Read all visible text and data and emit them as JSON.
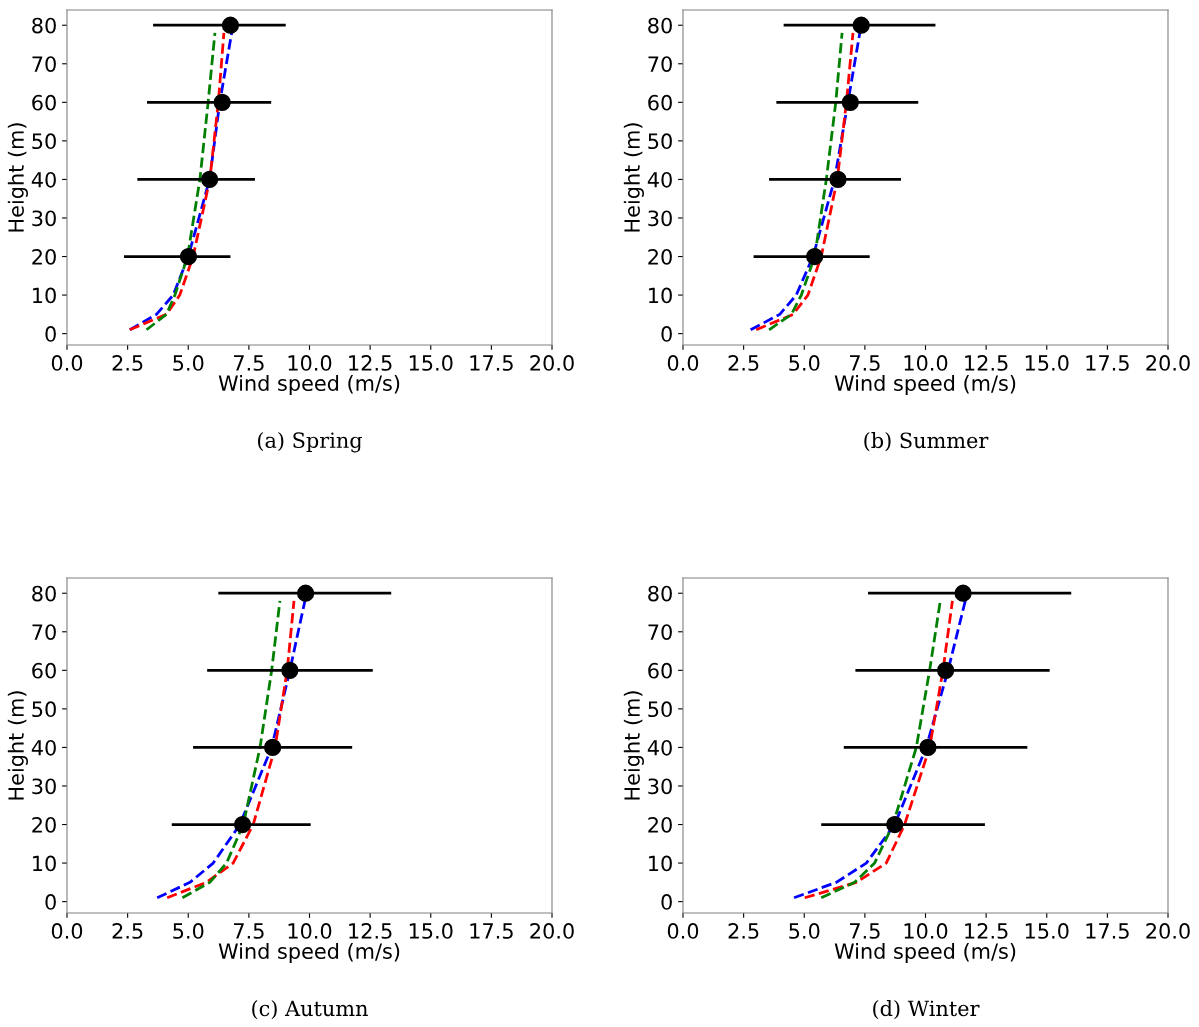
{
  "chart_data": [
    {
      "type": "line",
      "title": "(a) Spring",
      "xlabel": "Wind speed (m/s)",
      "ylabel": "Height (m)",
      "xlim": [
        0,
        20
      ],
      "ylim": [
        -2.95,
        83.95
      ],
      "xticks": [
        {
          "value": 0,
          "label": "0.0"
        },
        2.5,
        {
          "value": 5,
          "label": "5.0"
        },
        7.5,
        {
          "value": 10,
          "label": "10.0"
        },
        12.5,
        {
          "value": 15,
          "label": "15.0"
        },
        17.5,
        {
          "value": 20,
          "label": "20.0"
        }
      ],
      "yticks": [
        0,
        10,
        20,
        30,
        40,
        50,
        60,
        70,
        80
      ],
      "grid": false,
      "legend": false,
      "series": [
        {
          "color": "#0000ff",
          "line_style": "dashed",
          "x": [
            2.59,
            3.69,
            4.38,
            5.0,
            5.88,
            6.3,
            6.79
          ],
          "values": [
            1,
            5,
            10,
            20,
            40,
            60,
            78
          ]
        },
        {
          "color": "#ff0000",
          "line_style": "dashed",
          "x": [
            2.59,
            4.1,
            4.65,
            5.2,
            5.89,
            6.24,
            6.47
          ],
          "values": [
            1,
            5,
            10,
            20,
            40,
            60,
            78
          ]
        },
        {
          "color": "#008000",
          "line_style": "dashed",
          "x": [
            3.28,
            4.1,
            4.45,
            4.97,
            5.48,
            5.82,
            6.1
          ],
          "values": [
            1,
            5,
            10,
            20,
            40,
            60,
            78
          ]
        },
        {
          "type": "scatter",
          "color": "#000000",
          "marker": "circle",
          "x": [
            5.01,
            5.88,
            6.4,
            6.74
          ],
          "values": [
            20,
            40,
            60,
            80
          ],
          "xerrors": [
            [
              2.35,
              6.74
            ],
            [
              2.9,
              7.75
            ],
            [
              3.3,
              8.42
            ],
            [
              3.55,
              9.02
            ]
          ]
        }
      ]
    },
    {
      "type": "line",
      "title": "(b) Summer",
      "xlabel": "Wind speed (m/s)",
      "ylabel": "Height (m)",
      "xlim": [
        0,
        20
      ],
      "ylim": [
        -2.95,
        83.95
      ],
      "xticks": [
        {
          "value": 0,
          "label": "0.0"
        },
        2.5,
        {
          "value": 5,
          "label": "5.0"
        },
        7.5,
        {
          "value": 10,
          "label": "10.0"
        },
        12.5,
        {
          "value": 15,
          "label": "15.0"
        },
        17.5,
        {
          "value": 20,
          "label": "20.0"
        }
      ],
      "yticks": [
        0,
        10,
        20,
        30,
        40,
        50,
        60,
        70,
        80
      ],
      "grid": false,
      "legend": false,
      "series": [
        {
          "color": "#0000ff",
          "line_style": "dashed",
          "x": [
            2.79,
            3.99,
            4.67,
            5.36,
            6.25,
            6.8,
            7.29
          ],
          "values": [
            1,
            5,
            10,
            20,
            40,
            60,
            78
          ]
        },
        {
          "color": "#ff0000",
          "line_style": "dashed",
          "x": [
            3.02,
            4.54,
            5.15,
            5.7,
            6.36,
            6.74,
            7.01
          ],
          "values": [
            1,
            5,
            10,
            20,
            40,
            60,
            78
          ]
        },
        {
          "color": "#008000",
          "line_style": "dashed",
          "x": [
            3.55,
            4.47,
            4.88,
            5.43,
            5.91,
            6.3,
            6.56
          ],
          "values": [
            1,
            5,
            10,
            20,
            40,
            60,
            78
          ]
        },
        {
          "type": "scatter",
          "color": "#000000",
          "marker": "circle",
          "x": [
            5.43,
            6.39,
            6.9,
            7.35
          ],
          "values": [
            20,
            40,
            60,
            80
          ],
          "xerrors": [
            [
              2.91,
              7.7
            ],
            [
              3.55,
              8.99
            ],
            [
              3.85,
              9.7
            ],
            [
              4.15,
              10.41
            ]
          ]
        }
      ]
    },
    {
      "type": "line",
      "title": "(c) Autumn",
      "xlabel": "Wind speed (m/s)",
      "ylabel": "Height (m)",
      "xlim": [
        0,
        20
      ],
      "ylim": [
        -2.95,
        83.95
      ],
      "xticks": [
        {
          "value": 0,
          "label": "0.0"
        },
        2.5,
        {
          "value": 5,
          "label": "5.0"
        },
        7.5,
        {
          "value": 10,
          "label": "10.0"
        },
        12.5,
        {
          "value": 15,
          "label": "15.0"
        },
        17.5,
        {
          "value": 20,
          "label": "20.0"
        }
      ],
      "yticks": [
        0,
        10,
        20,
        30,
        40,
        50,
        60,
        70,
        80
      ],
      "grid": false,
      "legend": false,
      "series": [
        {
          "color": "#0000ff",
          "line_style": "dashed",
          "x": [
            3.72,
            5.07,
            6.03,
            7.13,
            8.44,
            9.19,
            9.81
          ],
          "values": [
            1,
            5,
            10,
            20,
            40,
            60,
            78
          ]
        },
        {
          "color": "#ff0000",
          "line_style": "dashed",
          "x": [
            4.13,
            5.75,
            6.85,
            7.68,
            8.58,
            9.08,
            9.36
          ],
          "values": [
            1,
            5,
            10,
            20,
            40,
            60,
            78
          ]
        },
        {
          "color": "#008000",
          "line_style": "dashed",
          "x": [
            4.76,
            5.89,
            6.58,
            7.27,
            7.96,
            8.44,
            8.78
          ],
          "values": [
            1,
            5,
            10,
            20,
            40,
            60,
            78
          ]
        },
        {
          "type": "scatter",
          "color": "#000000",
          "marker": "circle",
          "x": [
            7.24,
            8.48,
            9.19,
            9.84
          ],
          "values": [
            20,
            40,
            60,
            80
          ],
          "xerrors": [
            [
              4.32,
              10.05
            ],
            [
              5.2,
              11.76
            ],
            [
              5.78,
              12.61
            ],
            [
              6.24,
              13.37
            ]
          ]
        }
      ]
    },
    {
      "type": "line",
      "title": "(d) Winter",
      "xlabel": "Wind speed (m/s)",
      "ylabel": "Height (m)",
      "xlim": [
        0,
        20
      ],
      "ylim": [
        -2.95,
        83.95
      ],
      "xticks": [
        {
          "value": 0,
          "label": "0.0"
        },
        2.5,
        {
          "value": 5,
          "label": "5.0"
        },
        7.5,
        {
          "value": 10,
          "label": "10.0"
        },
        12.5,
        {
          "value": 15,
          "label": "15.0"
        },
        17.5,
        {
          "value": 20,
          "label": "20.0"
        }
      ],
      "yticks": [
        0,
        10,
        20,
        30,
        40,
        50,
        60,
        70,
        80
      ],
      "grid": false,
      "legend": false,
      "series": [
        {
          "color": "#0000ff",
          "line_style": "dashed",
          "x": [
            4.58,
            6.32,
            7.56,
            8.73,
            10.03,
            10.93,
            11.64
          ],
          "values": [
            1,
            5,
            10,
            20,
            40,
            60,
            78
          ]
        },
        {
          "color": "#ff0000",
          "line_style": "dashed",
          "x": [
            5.02,
            7.15,
            8.38,
            9.14,
            10.17,
            10.72,
            11.11
          ],
          "values": [
            1,
            5,
            10,
            20,
            40,
            60,
            78
          ]
        },
        {
          "color": "#008000",
          "line_style": "dashed",
          "x": [
            5.7,
            7.08,
            7.9,
            8.66,
            9.62,
            10.17,
            10.61
          ],
          "values": [
            1,
            5,
            10,
            20,
            40,
            60,
            78
          ]
        },
        {
          "type": "scatter",
          "color": "#000000",
          "marker": "circle",
          "x": [
            8.73,
            10.1,
            10.83,
            11.55
          ],
          "values": [
            20,
            40,
            60,
            80
          ],
          "xerrors": [
            [
              5.7,
              12.45
            ],
            [
              6.63,
              14.2
            ],
            [
              7.11,
              15.12
            ],
            [
              7.63,
              16.01
            ]
          ]
        }
      ]
    }
  ]
}
